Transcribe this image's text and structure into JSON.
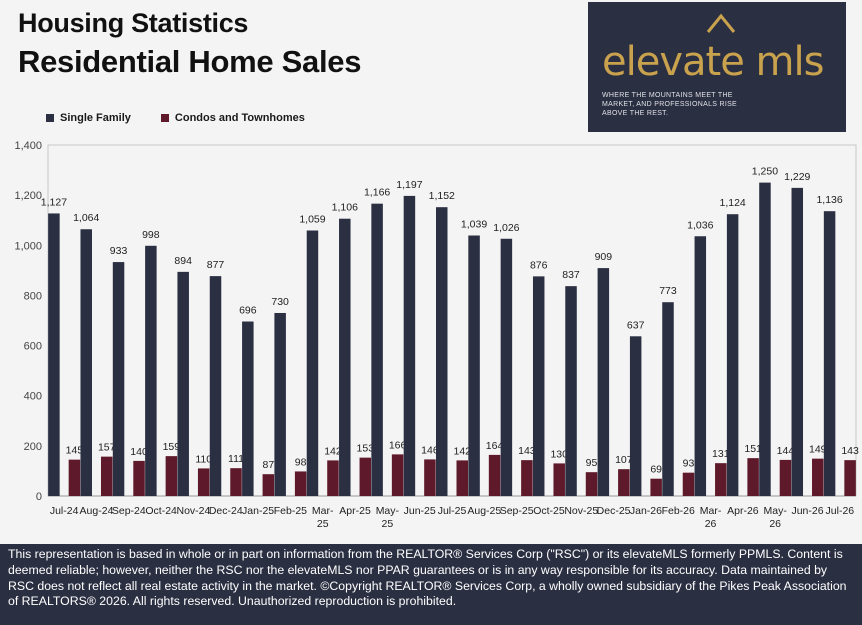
{
  "header": {
    "title_line1": "Housing Statistics",
    "title_line2": "Residential Home Sales"
  },
  "logo": {
    "name": "elevate mls",
    "tagline": "Where the mountains meet the market, and professionals rise above the rest."
  },
  "footer": {
    "text": "This representation is based in whole or in part on information from the REALTOR® Services Corp (\"RSC\") or its elevateMLS formerly PPMLS. Content is deemed reliable; however, neither the RSC nor the elevateMLS nor PPAR guarantees or is in any way responsible for its accuracy. Data maintained by RSC does not reflect all real estate activity in the market.  ©Copyright REALTOR® Services Corp, a wholly owned subsidiary of the Pikes Peak Association of REALTORS®  2026. All rights reserved. Unauthorized reproduction is prohibited."
  },
  "colors": {
    "single_family": "#2b2f42",
    "condos": "#5e1a2a",
    "background": "#f4f4f5",
    "footer_bg": "#2b2f42",
    "logo_gold": "#c9a24e"
  },
  "chart_data": {
    "type": "bar",
    "categories": [
      "Jul-24",
      "Aug-24",
      "Sep-24",
      "Oct-24",
      "Nov-24",
      "Dec-24",
      "Jan-25",
      "Feb-25",
      "Mar-25",
      "Apr-25",
      "May-25",
      "Jun-25",
      "Jul-25",
      "Aug-25",
      "Sep-25",
      "Oct-25",
      "Nov-25",
      "Dec-25",
      "Jan-26",
      "Feb-26",
      "Mar-26",
      "Apr-26",
      "May-26",
      "Jun-26",
      "Jul-26"
    ],
    "series": [
      {
        "name": "Single Family",
        "color": "#2b2f42",
        "values": [
          1127,
          1064,
          933,
          998,
          894,
          877,
          696,
          730,
          1059,
          1106,
          1166,
          1197,
          1152,
          1039,
          1026,
          876,
          837,
          909,
          637,
          773,
          1036,
          1124,
          1250,
          1229,
          1136
        ]
      },
      {
        "name": "Condos and Townhomes",
        "color": "#5e1a2a",
        "values": [
          145,
          157,
          140,
          159,
          110,
          111,
          87,
          98,
          142,
          153,
          166,
          146,
          142,
          164,
          143,
          130,
          95,
          107,
          69,
          93,
          131,
          151,
          144,
          149,
          143
        ]
      }
    ],
    "ylim": [
      0,
      1400
    ],
    "yticks": [
      "0",
      "200",
      "400",
      "600",
      "800",
      "1,000",
      "1,200",
      "1,400"
    ],
    "legend": "top-left",
    "grid": false
  }
}
